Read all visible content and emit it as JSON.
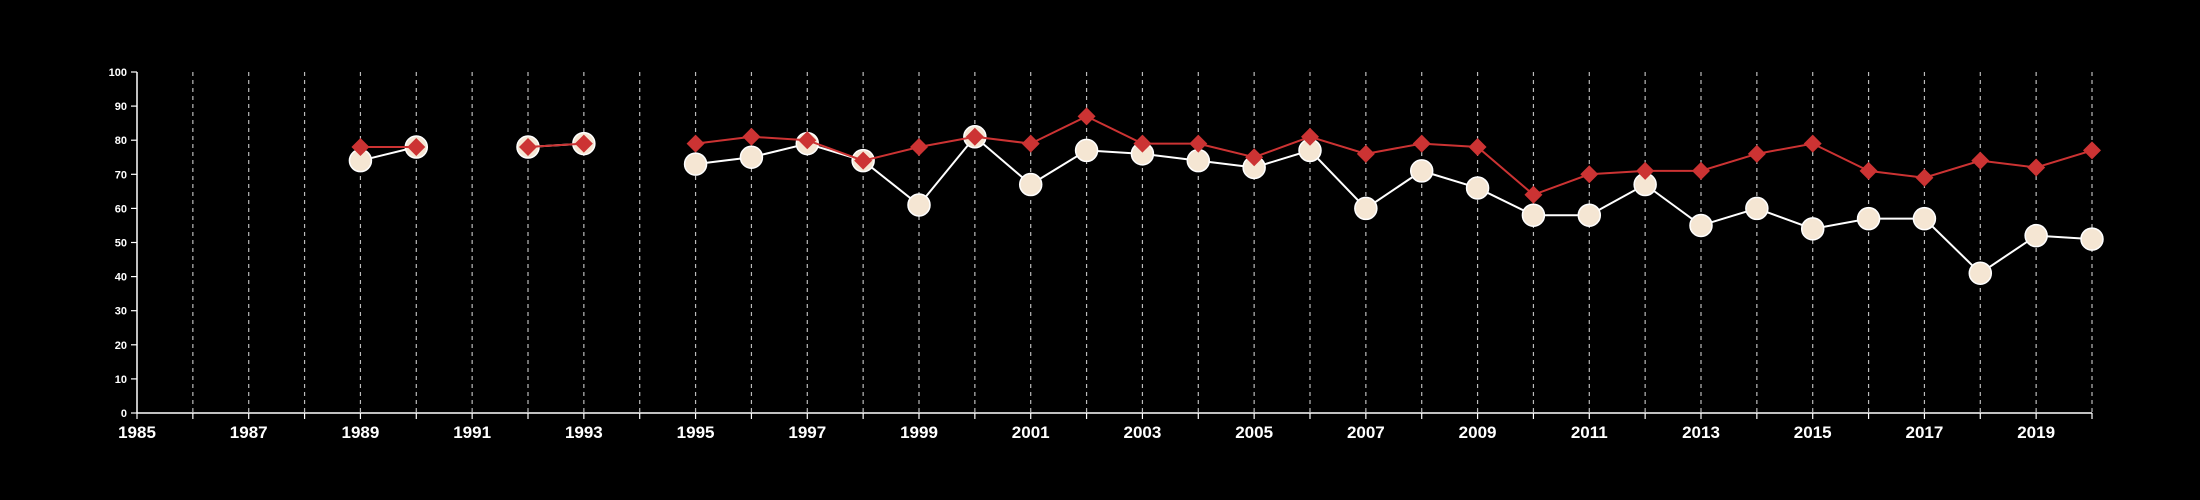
{
  "chart_data": {
    "type": "line",
    "title": "",
    "xlabel": "",
    "ylabel": "",
    "xlim": [
      1985,
      2020
    ],
    "ylim": [
      0,
      100
    ],
    "y_ticks": [
      0,
      10,
      20,
      30,
      40,
      50,
      60,
      70,
      80,
      90,
      100
    ],
    "x_tick_labels": [
      1985,
      1987,
      1989,
      1991,
      1993,
      1995,
      1997,
      1999,
      2001,
      2003,
      2005,
      2007,
      2009,
      2011,
      2013,
      2015,
      2017,
      2019
    ],
    "vertical_gridlines": "dashed, every year",
    "x": [
      1985,
      1986,
      1987,
      1988,
      1989,
      1990,
      1991,
      1992,
      1993,
      1994,
      1995,
      1996,
      1997,
      1998,
      1999,
      2000,
      2001,
      2002,
      2003,
      2004,
      2005,
      2006,
      2007,
      2008,
      2009,
      2010,
      2011,
      2012,
      2013,
      2014,
      2015,
      2016,
      2017,
      2018,
      2019,
      2020
    ],
    "series": [
      {
        "color": "#cc3333",
        "marker": "diamond",
        "values": [
          null,
          null,
          null,
          null,
          78,
          78,
          null,
          78,
          79,
          null,
          79,
          81,
          80,
          74,
          78,
          81,
          79,
          87,
          79,
          79,
          75,
          81,
          76,
          79,
          78,
          64,
          70,
          71,
          71,
          76,
          79,
          71,
          69,
          74,
          72,
          77
        ]
      },
      {
        "color": "#f5e6d3",
        "line_color": "#ffffff",
        "marker": "circle",
        "values": [
          null,
          null,
          null,
          null,
          74,
          78,
          null,
          78,
          79,
          null,
          73,
          75,
          79,
          74,
          61,
          81,
          67,
          77,
          76,
          74,
          72,
          77,
          60,
          71,
          66,
          58,
          58,
          67,
          55,
          60,
          54,
          57,
          57,
          41,
          52,
          51
        ]
      }
    ]
  }
}
